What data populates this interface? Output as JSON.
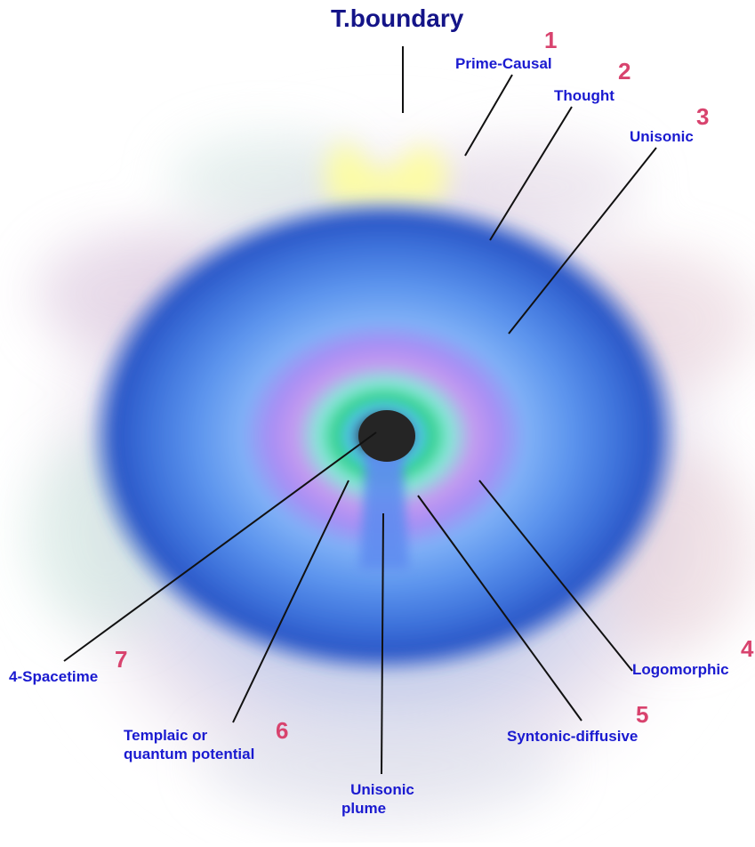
{
  "title": "T.boundary",
  "labels": {
    "prime_causal": "Prime-Causal",
    "thought": "Thought",
    "unisonic": "Unisonic",
    "logomorphic": "Logomorphic",
    "syntonic_diffusive": "Syntonic-diffusive",
    "templaic_line1": "Templaic or",
    "templaic_line2": "quantum potential",
    "unisonic_plume_line1": "Unisonic",
    "unisonic_plume_line2": "plume",
    "spacetime": "4-Spacetime"
  },
  "numbers": {
    "n1": "1",
    "n2": "2",
    "n3": "3",
    "n4": "4",
    "n5": "5",
    "n6": "6",
    "n7": "7"
  },
  "colors": {
    "label_blue": "#1a1ad0",
    "number_pink": "#d8436e",
    "title_navy": "#141488",
    "core_black": "#222222"
  }
}
